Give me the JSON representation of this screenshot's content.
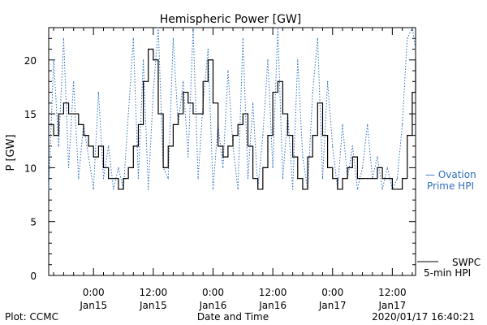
{
  "chart_data": {
    "type": "line",
    "title": "Hemispheric Power [GW]",
    "ylabel": "P [GW]",
    "xlabel": "Date and Time",
    "ylim": [
      0,
      23
    ],
    "xlim": [
      "2020-01-14T15:00",
      "2020-01-17T16:40"
    ],
    "y_ticks": [
      0,
      5,
      10,
      15,
      20
    ],
    "x_ticks": [
      {
        "at": "2020-01-15T00:00",
        "time": "0:00",
        "date": "Jan15"
      },
      {
        "at": "2020-01-15T12:00",
        "time": "12:00",
        "date": "Jan15"
      },
      {
        "at": "2020-01-16T00:00",
        "time": "0:00",
        "date": "Jan16"
      },
      {
        "at": "2020-01-16T12:00",
        "time": "12:00",
        "date": "Jan16"
      },
      {
        "at": "2020-01-17T00:00",
        "time": "0:00",
        "date": "Jan17"
      },
      {
        "at": "2020-01-17T12:00",
        "time": "12:00",
        "date": "Jan17"
      }
    ],
    "grid": false,
    "series": [
      {
        "name": "SWPC 5-min HPI",
        "color": "#000000",
        "style": "solid",
        "x": [
          "2020-01-14T15:00",
          "2020-01-14T16:00",
          "2020-01-14T17:00",
          "2020-01-14T18:00",
          "2020-01-14T19:00",
          "2020-01-14T20:00",
          "2020-01-14T21:00",
          "2020-01-14T22:00",
          "2020-01-14T23:00",
          "2020-01-15T00:00",
          "2020-01-15T01:00",
          "2020-01-15T02:00",
          "2020-01-15T03:00",
          "2020-01-15T04:00",
          "2020-01-15T05:00",
          "2020-01-15T06:00",
          "2020-01-15T07:00",
          "2020-01-15T08:00",
          "2020-01-15T09:00",
          "2020-01-15T10:00",
          "2020-01-15T11:00",
          "2020-01-15T12:00",
          "2020-01-15T13:00",
          "2020-01-15T14:00",
          "2020-01-15T15:00",
          "2020-01-15T16:00",
          "2020-01-15T17:00",
          "2020-01-15T18:00",
          "2020-01-15T19:00",
          "2020-01-15T20:00",
          "2020-01-15T21:00",
          "2020-01-15T22:00",
          "2020-01-15T23:00",
          "2020-01-16T00:00",
          "2020-01-16T01:00",
          "2020-01-16T02:00",
          "2020-01-16T03:00",
          "2020-01-16T04:00",
          "2020-01-16T05:00",
          "2020-01-16T06:00",
          "2020-01-16T07:00",
          "2020-01-16T08:00",
          "2020-01-16T09:00",
          "2020-01-16T10:00",
          "2020-01-16T11:00",
          "2020-01-16T12:00",
          "2020-01-16T13:00",
          "2020-01-16T14:00",
          "2020-01-16T15:00",
          "2020-01-16T16:00",
          "2020-01-16T17:00",
          "2020-01-16T18:00",
          "2020-01-16T19:00",
          "2020-01-16T20:00",
          "2020-01-16T21:00",
          "2020-01-16T22:00",
          "2020-01-16T23:00",
          "2020-01-17T00:00",
          "2020-01-17T01:00",
          "2020-01-17T02:00",
          "2020-01-17T03:00",
          "2020-01-17T04:00",
          "2020-01-17T05:00",
          "2020-01-17T06:00",
          "2020-01-17T07:00",
          "2020-01-17T08:00",
          "2020-01-17T09:00",
          "2020-01-17T10:00",
          "2020-01-17T11:00",
          "2020-01-17T12:00",
          "2020-01-17T13:00",
          "2020-01-17T14:00",
          "2020-01-17T15:00",
          "2020-01-17T16:00",
          "2020-01-17T16:40"
        ],
        "values": [
          14,
          13,
          15,
          16,
          15,
          15,
          14,
          13,
          12,
          11,
          12,
          10,
          9,
          9,
          8,
          9,
          10,
          12,
          14,
          18,
          21,
          20,
          15,
          10,
          12,
          14,
          15,
          17,
          16,
          15,
          15,
          18,
          20,
          16,
          12,
          11,
          12,
          13,
          14,
          15,
          12,
          9,
          8,
          10,
          13,
          17,
          18,
          15,
          13,
          11,
          9,
          8,
          11,
          13,
          16,
          13,
          10,
          9,
          8,
          9,
          10,
          11,
          9,
          9,
          9,
          9,
          10,
          9,
          9,
          8,
          8,
          9,
          13,
          17,
          20
        ]
      },
      {
        "name": "Ovation Prime HPI",
        "color": "#2f6fc0",
        "style": "dotted",
        "x": [
          "2020-01-14T15:00",
          "2020-01-14T16:00",
          "2020-01-14T17:00",
          "2020-01-14T18:00",
          "2020-01-14T19:00",
          "2020-01-14T20:00",
          "2020-01-14T21:00",
          "2020-01-14T22:00",
          "2020-01-14T23:00",
          "2020-01-15T00:00",
          "2020-01-15T01:00",
          "2020-01-15T02:00",
          "2020-01-15T03:00",
          "2020-01-15T04:00",
          "2020-01-15T05:00",
          "2020-01-15T06:00",
          "2020-01-15T07:00",
          "2020-01-15T08:00",
          "2020-01-15T09:00",
          "2020-01-15T10:00",
          "2020-01-15T11:00",
          "2020-01-15T12:00",
          "2020-01-15T13:00",
          "2020-01-15T14:00",
          "2020-01-15T15:00",
          "2020-01-15T16:00",
          "2020-01-15T17:00",
          "2020-01-15T18:00",
          "2020-01-15T19:00",
          "2020-01-15T20:00",
          "2020-01-15T21:00",
          "2020-01-15T22:00",
          "2020-01-15T23:00",
          "2020-01-16T00:00",
          "2020-01-16T01:00",
          "2020-01-16T02:00",
          "2020-01-16T03:00",
          "2020-01-16T04:00",
          "2020-01-16T05:00",
          "2020-01-16T06:00",
          "2020-01-16T07:00",
          "2020-01-16T08:00",
          "2020-01-16T09:00",
          "2020-01-16T10:00",
          "2020-01-16T11:00",
          "2020-01-16T12:00",
          "2020-01-16T13:00",
          "2020-01-16T14:00",
          "2020-01-16T15:00",
          "2020-01-16T16:00",
          "2020-01-16T17:00",
          "2020-01-16T18:00",
          "2020-01-16T19:00",
          "2020-01-16T20:00",
          "2020-01-16T21:00",
          "2020-01-16T22:00",
          "2020-01-16T23:00",
          "2020-01-17T00:00",
          "2020-01-17T01:00",
          "2020-01-17T02:00",
          "2020-01-17T03:00",
          "2020-01-17T04:00",
          "2020-01-17T05:00",
          "2020-01-17T06:00",
          "2020-01-17T07:00",
          "2020-01-17T08:00",
          "2020-01-17T09:00",
          "2020-01-17T10:00",
          "2020-01-17T11:00",
          "2020-01-17T12:00",
          "2020-01-17T13:00",
          "2020-01-17T14:00",
          "2020-01-17T15:00",
          "2020-01-17T16:00",
          "2020-01-17T16:40"
        ],
        "values": [
          8,
          20,
          12,
          22,
          10,
          18,
          9,
          14,
          11,
          8,
          17,
          9,
          12,
          8,
          10,
          8,
          15,
          22,
          9,
          20,
          8,
          17,
          23,
          10,
          9,
          22,
          14,
          18,
          11,
          23,
          9,
          16,
          21,
          8,
          14,
          10,
          19,
          12,
          8,
          22,
          9,
          16,
          8,
          13,
          20,
          10,
          23,
          9,
          15,
          8,
          20,
          11,
          8,
          17,
          22,
          9,
          18,
          12,
          8,
          14,
          9,
          12,
          8,
          10,
          14,
          9,
          11,
          8,
          10,
          8,
          9,
          14,
          22,
          23,
          21
        ]
      }
    ],
    "legend": {
      "position": "right",
      "items": [
        {
          "marker": "— ",
          "line1": "Ovation",
          "line2": "Prime HPI",
          "color": "#2f6fc0"
        },
        {
          "marker": "",
          "line1": "SWPC",
          "line2": "5-min HPI",
          "color": "#000000"
        }
      ]
    }
  },
  "footer": {
    "plot_credit": "Plot: CCMC",
    "timestamp": "2020/01/17 16:40:21"
  }
}
